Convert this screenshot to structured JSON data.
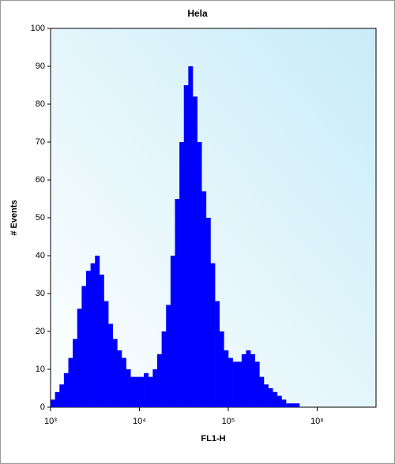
{
  "chart_data": {
    "type": "histogram",
    "title": "Hela",
    "x_label": "FL1-H",
    "y_label": "# Events",
    "x_scale": "log",
    "color": "#0000ff",
    "bins": [
      1000,
      1122,
      1259,
      1413,
      1585,
      1778,
      1995,
      2239,
      2512,
      2818,
      3162,
      3548,
      3981,
      4467,
      5012,
      5623,
      6310,
      7079,
      7943,
      8913,
      10000,
      11220,
      12589,
      14125,
      15849,
      17783,
      19953,
      22387,
      25119,
      28184,
      31623,
      35481,
      39811,
      44668,
      50119,
      56234,
      63096,
      70795,
      79433,
      89125,
      100000,
      112202,
      125893,
      141254,
      158489,
      177828,
      199526,
      223872,
      251189,
      281838,
      316228,
      354813,
      398107,
      446684,
      501187,
      562341,
      630957,
      707946,
      794328,
      891251,
      1000000
    ],
    "counts": [
      2,
      4,
      6,
      9,
      13,
      18,
      26,
      32,
      36,
      38,
      40,
      35,
      28,
      22,
      18,
      15,
      13,
      10,
      8,
      8,
      8,
      9,
      8,
      10,
      14,
      20,
      27,
      40,
      55,
      70,
      85,
      90,
      82,
      70,
      57,
      50,
      38,
      28,
      20,
      15,
      13,
      12,
      12,
      14,
      15,
      14,
      12,
      8,
      6,
      5,
      4,
      3,
      2,
      1,
      1,
      1,
      0,
      0,
      0,
      0
    ],
    "xlim": [
      1000,
      4600000
    ],
    "xticks": [
      {
        "value": 1000,
        "label": "10³"
      },
      {
        "value": 10000,
        "label": "10⁴"
      },
      {
        "value": 100000,
        "label": "10⁵"
      },
      {
        "value": 1000000,
        "label": "10⁶"
      }
    ],
    "ylim": [
      0,
      100
    ],
    "yticks": [
      0,
      10,
      20,
      30,
      40,
      50,
      60,
      70,
      80,
      90,
      100
    ]
  }
}
